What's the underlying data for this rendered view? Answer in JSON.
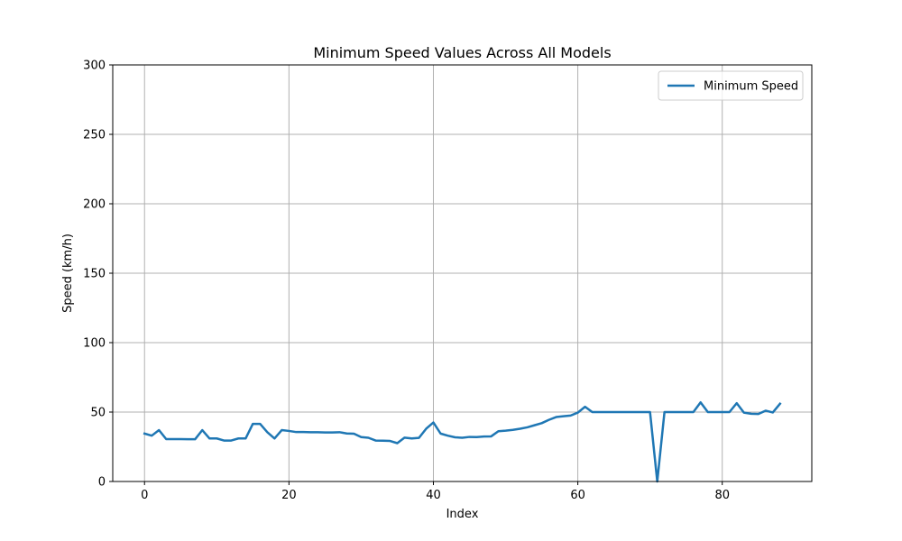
{
  "chart_data": {
    "type": "line",
    "title": "Minimum Speed Values Across All Models",
    "xlabel": "Index",
    "ylabel": "Speed (km/h)",
    "xlim": [
      -4.4,
      92.4
    ],
    "ylim": [
      0,
      300
    ],
    "xticks": [
      0,
      20,
      40,
      60,
      80
    ],
    "yticks": [
      0,
      50,
      100,
      150,
      200,
      250,
      300
    ],
    "grid": true,
    "legend_position": "top-right",
    "series": [
      {
        "name": "Minimum Speed",
        "color": "#1f77b4",
        "x": [
          0,
          1,
          2,
          3,
          4,
          5,
          6,
          7,
          8,
          9,
          10,
          11,
          12,
          13,
          14,
          15,
          16,
          17,
          18,
          19,
          20,
          21,
          22,
          23,
          24,
          25,
          26,
          27,
          28,
          29,
          30,
          31,
          32,
          33,
          34,
          35,
          36,
          37,
          38,
          39,
          40,
          41,
          42,
          43,
          44,
          45,
          46,
          47,
          48,
          49,
          50,
          51,
          52,
          53,
          54,
          55,
          56,
          57,
          58,
          59,
          60,
          61,
          62,
          63,
          64,
          65,
          66,
          67,
          68,
          69,
          70,
          71,
          72,
          73,
          74,
          75,
          76,
          77,
          78,
          79,
          80,
          81,
          82,
          83,
          84,
          85,
          86,
          87,
          88
        ],
        "values": [
          34.5,
          33,
          37,
          30.5,
          30.5,
          30.5,
          30.4,
          30.4,
          37,
          31,
          31,
          29.5,
          29.5,
          31,
          31,
          41.5,
          41.5,
          35.5,
          31,
          37,
          36.4,
          35.6,
          35.6,
          35.5,
          35.5,
          35.3,
          35.3,
          35.5,
          34.6,
          34.4,
          32,
          31.5,
          29.5,
          29.4,
          29.2,
          27.6,
          31.6,
          31,
          31.4,
          38,
          42.5,
          34.5,
          33,
          31.8,
          31.5,
          32.1,
          32,
          32.4,
          32.5,
          36.2,
          36.6,
          37.2,
          38,
          39,
          40.5,
          42,
          44.4,
          46.4,
          47,
          47.5,
          49.6,
          53.8,
          50,
          50,
          50,
          50,
          50,
          50,
          50,
          50,
          50,
          0,
          50,
          50,
          50,
          50,
          50,
          57,
          50,
          50,
          50,
          50,
          56.4,
          49.6,
          48.8,
          48.6,
          51,
          49.7,
          56
        ]
      }
    ]
  }
}
